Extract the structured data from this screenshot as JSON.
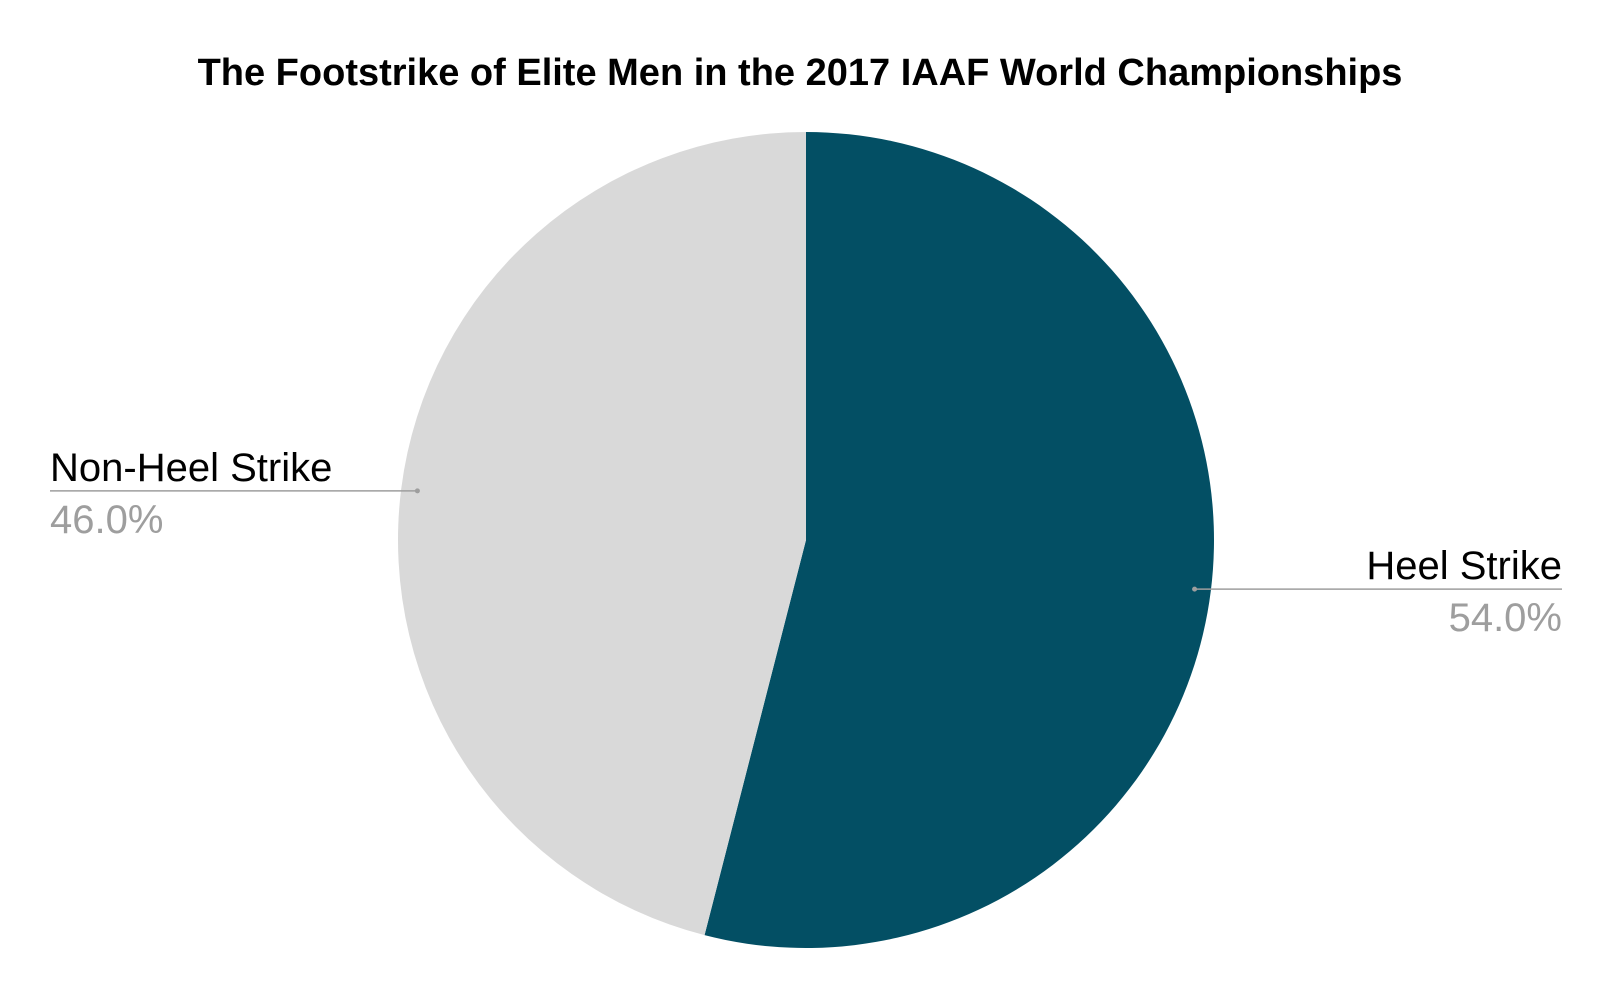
{
  "chart_data": {
    "type": "pie",
    "title": "The Footstrike of Elite Men in the 2017 IAAF World Championships",
    "slices": [
      {
        "label": "Heel Strike",
        "value": 54.0,
        "display": "54.0%",
        "color": "#034f64"
      },
      {
        "label": "Non-Heel Strike",
        "value": 46.0,
        "display": "46.0%",
        "color": "#d9d9d9"
      }
    ],
    "start_angle": "12 o'clock",
    "direction": "clockwise",
    "legend": "none",
    "label_line_color": "#9e9e9e"
  }
}
